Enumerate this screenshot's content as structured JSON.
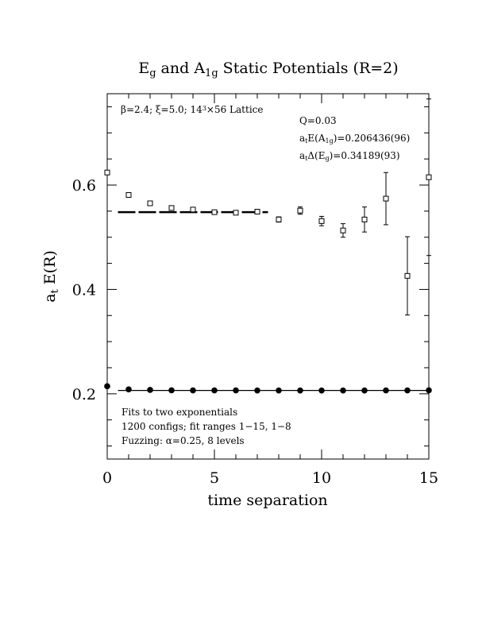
{
  "title": {
    "parts": [
      {
        "t": "E"
      },
      {
        "t": "g",
        "sub": true
      },
      {
        "t": " and A"
      },
      {
        "t": "1g",
        "sub": true
      },
      {
        "t": " Static Potentials (R=2)"
      }
    ]
  },
  "header_annotation": {
    "parts": [
      {
        "t": "β=2.4; ξ=5.0; 14"
      },
      {
        "t": "3",
        "sup": true
      },
      {
        "t": "×56 Lattice"
      }
    ]
  },
  "fit_info": [
    {
      "parts": [
        {
          "t": "Q=0.03"
        }
      ]
    },
    {
      "parts": [
        {
          "t": "a"
        },
        {
          "t": "t",
          "sub": true
        },
        {
          "t": "E(A"
        },
        {
          "t": "1g",
          "sub": true
        },
        {
          "t": ")=0.206436(96)"
        }
      ]
    },
    {
      "parts": [
        {
          "t": "a"
        },
        {
          "t": "t",
          "sub": true
        },
        {
          "t": "Δ(E"
        },
        {
          "t": "g",
          "sub": true
        },
        {
          "t": ")=0.34189(93)"
        }
      ]
    }
  ],
  "footer_notes": [
    "Fits to two exponentials",
    "1200 configs; fit ranges 1−15, 1−8",
    "Fuzzing: α=0.25, 8 levels"
  ],
  "chart_data": {
    "type": "scatter",
    "title": "Eg and A1g Static Potentials (R=2)",
    "xlabel": "time separation",
    "ylabel": "a_t E(R)",
    "xlim": [
      0,
      15
    ],
    "ylim": [
      0.075,
      0.775
    ],
    "xticks": [
      0,
      5,
      10,
      15
    ],
    "yticks": [
      0.2,
      0.4,
      0.6
    ],
    "xtick_labels": [
      "0",
      "5",
      "10",
      "15"
    ],
    "ytick_labels": [
      "0.2",
      "0.4",
      "0.6"
    ],
    "grid": false,
    "series": [
      {
        "marker": "filled-circle",
        "x": [
          0,
          1,
          2,
          3,
          4,
          5,
          6,
          7,
          8,
          9,
          10,
          11,
          12,
          13,
          14,
          15
        ],
        "y": [
          0.2145,
          0.2085,
          0.2075,
          0.2068,
          0.2066,
          0.2065,
          0.2065,
          0.2064,
          0.2064,
          0.2064,
          0.2064,
          0.2064,
          0.2064,
          0.2065,
          0.2066,
          0.2068
        ],
        "err": [
          0.0004,
          0.0003,
          0.0003,
          0.0003,
          0.0003,
          0.0003,
          0.0003,
          0.0004,
          0.0004,
          0.0004,
          0.0005,
          0.0005,
          0.0006,
          0.0007,
          0.0008,
          0.001
        ]
      },
      {
        "marker": "open-square",
        "x": [
          0,
          1,
          2,
          3,
          4,
          5,
          6,
          7,
          8,
          9,
          10,
          11,
          12,
          13,
          14,
          15
        ],
        "y": [
          0.624,
          0.581,
          0.565,
          0.556,
          0.553,
          0.548,
          0.547,
          0.549,
          0.534,
          0.551,
          0.531,
          0.513,
          0.534,
          0.574,
          0.426,
          0.615
        ],
        "err": [
          0.001,
          0.002,
          0.002,
          0.003,
          0.003,
          0.003,
          0.003,
          0.004,
          0.005,
          0.007,
          0.009,
          0.013,
          0.024,
          0.05,
          0.075,
          0.15
        ]
      }
    ],
    "fit_lines": [
      {
        "x": [
          0.5,
          15
        ],
        "y": [
          0.2064,
          0.2064
        ]
      },
      {
        "x": [
          0.5,
          7.5
        ],
        "y": [
          0.548,
          0.548
        ]
      }
    ]
  }
}
